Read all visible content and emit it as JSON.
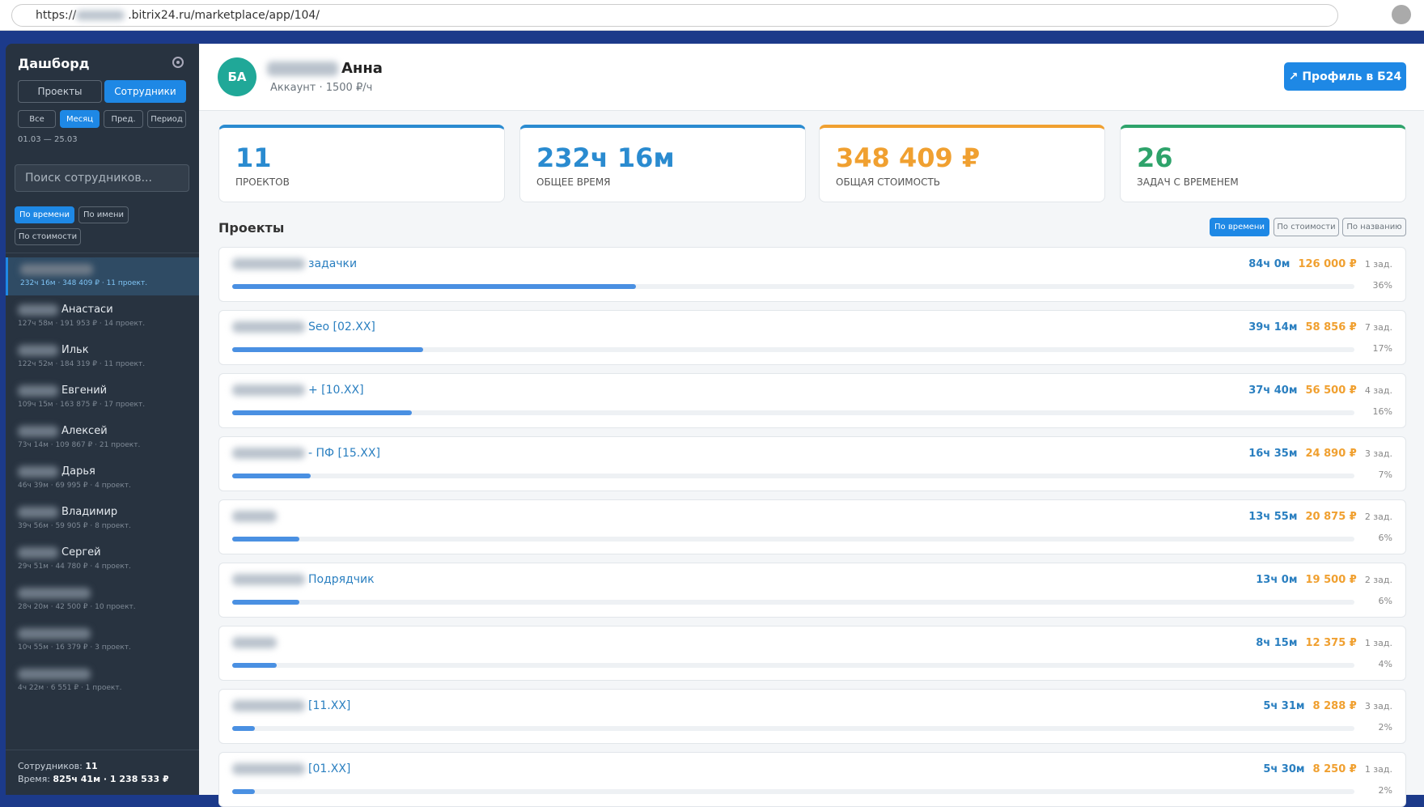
{
  "browser": {
    "url_scheme": "https://",
    "url_rest": ".bitrix24.ru/marketplace/app/104/"
  },
  "sidebar": {
    "title": "Дашборд",
    "tabs": [
      "Проекты",
      "Сотрудники"
    ],
    "periods": [
      "Все",
      "Месяц",
      "Пред.",
      "Период"
    ],
    "date_range": "01.03 — 25.03",
    "search_placeholder": "Поиск сотрудников...",
    "sorts": [
      "По времени",
      "По имени",
      "По стоимости"
    ],
    "employees": [
      {
        "stats": "232ч 16м · 348 409 ₽ · 11 проект."
      },
      {
        "name": "Анастаси",
        "stats": "127ч 58м · 191 953 ₽ · 14 проект."
      },
      {
        "name": "Ильк",
        "stats": "122ч 52м · 184 319 ₽ · 11 проект."
      },
      {
        "name": "Евгений",
        "stats": "109ч 15м · 163 875 ₽ · 17 проект."
      },
      {
        "name": "Алексей",
        "stats": "73ч 14м · 109 867 ₽ · 21 проект."
      },
      {
        "name": "Дарья",
        "stats": "46ч 39м · 69 995 ₽ · 4 проект."
      },
      {
        "name": "Владимир",
        "stats": "39ч 56м · 59 905 ₽ · 8 проект."
      },
      {
        "name": "Сергей",
        "stats": "29ч 51м · 44 780 ₽ · 4 проект."
      },
      {
        "stats": "28ч 20м · 42 500 ₽ · 10 проект."
      },
      {
        "stats": "10ч 55м · 16 379 ₽ · 3 проект."
      },
      {
        "stats": "4ч 22м · 6 551 ₽ · 1 проект."
      }
    ],
    "footer_count_label": "Сотрудников:",
    "footer_count": "11",
    "footer_time_label": "Время:",
    "footer_time": "825ч 41м · 1 238 533 ₽"
  },
  "header": {
    "initials": "БА",
    "name": "Анна",
    "subtitle": "Аккаунт · 1500 ₽/ч",
    "profile_button": "Профиль в Б24"
  },
  "stats": [
    {
      "value": "11",
      "label": "ПРОЕКТОВ"
    },
    {
      "value": "232ч 16м",
      "label": "ОБЩЕЕ ВРЕМЯ"
    },
    {
      "value": "348 409 ₽",
      "label": "ОБЩАЯ СТОИМОСТЬ"
    },
    {
      "value": "26",
      "label": "ЗАДАЧ С ВРЕМЕНЕМ"
    }
  ],
  "projects_title": "Проекты",
  "project_sorts": [
    "По времени",
    "По стоимости",
    "По названию"
  ],
  "projects": [
    {
      "name": "задачки",
      "time": "84ч 0м",
      "cost": "126 000 ₽",
      "tasks": "1 зад.",
      "pct": "36%"
    },
    {
      "name": "Seo [02.XX]",
      "time": "39ч 14м",
      "cost": "58 856 ₽",
      "tasks": "7 зад.",
      "pct": "17%"
    },
    {
      "name": "+ [10.XX]",
      "time": "37ч 40м",
      "cost": "56 500 ₽",
      "tasks": "4 зад.",
      "pct": "16%"
    },
    {
      "name": "- ПФ [15.XX]",
      "time": "16ч 35м",
      "cost": "24 890 ₽",
      "tasks": "3 зад.",
      "pct": "7%"
    },
    {
      "time": "13ч 55м",
      "cost": "20 875 ₽",
      "tasks": "2 зад.",
      "pct": "6%"
    },
    {
      "name": "Подрядчик",
      "time": "13ч 0м",
      "cost": "19 500 ₽",
      "tasks": "2 зад.",
      "pct": "6%"
    },
    {
      "time": "8ч 15м",
      "cost": "12 375 ₽",
      "tasks": "1 зад.",
      "pct": "4%"
    },
    {
      "name": "[11.XX]",
      "time": "5ч 31м",
      "cost": "8 288 ₽",
      "tasks": "3 зад.",
      "pct": "2%"
    },
    {
      "name": "[01.XX]",
      "time": "5ч 30м",
      "cost": "8 250 ₽",
      "tasks": "1 зад.",
      "pct": "2%"
    }
  ]
}
